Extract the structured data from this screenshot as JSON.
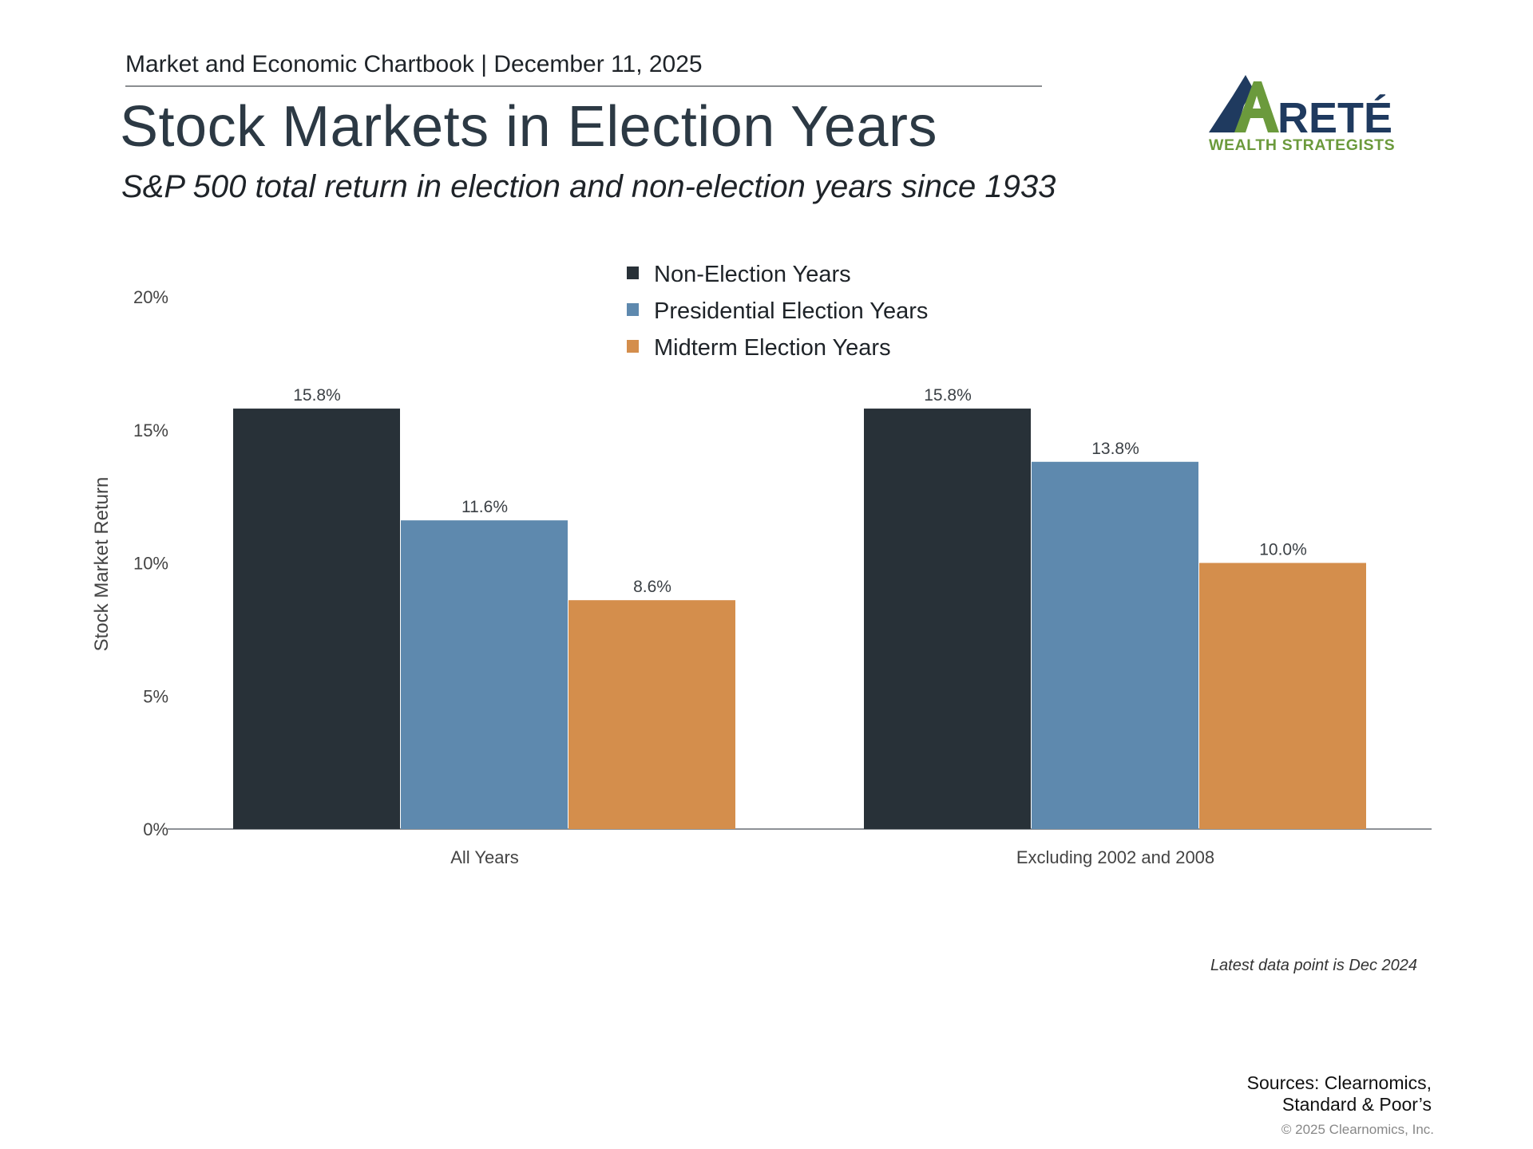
{
  "header": {
    "line": "Market and Economic Chartbook | December 11, 2025",
    "title": "Stock Markets in Election Years",
    "subtitle": "S&P 500 total return in election and non-election years since 1933"
  },
  "logo": {
    "name": "ARETÉ",
    "tagline": "WEALTH STRATEGISTS",
    "colors": {
      "navy": "#1f3a5f",
      "green": "#6b9a3c"
    }
  },
  "chart_data": {
    "type": "bar",
    "categories": [
      "All Years",
      "Excluding 2002 and 2008"
    ],
    "series": [
      {
        "name": "Non-Election Years",
        "values": [
          15.8,
          15.8
        ],
        "labels": [
          "15.8%",
          "15.8%"
        ],
        "color": "#283138"
      },
      {
        "name": "Presidential Election Years",
        "values": [
          11.6,
          13.8
        ],
        "labels": [
          "11.6%",
          "13.8%"
        ],
        "color": "#5e89ae"
      },
      {
        "name": "Midterm Election Years",
        "values": [
          8.6,
          10.0
        ],
        "labels": [
          "8.6%",
          "10.0%"
        ],
        "color": "#d48e4c"
      }
    ],
    "ylabel": "Stock Market Return",
    "ylim": [
      0,
      20
    ],
    "yticks": [
      {
        "value": 0,
        "label": "0%"
      },
      {
        "value": 5,
        "label": "5%"
      },
      {
        "value": 10,
        "label": "10%"
      },
      {
        "value": 15,
        "label": "15%"
      },
      {
        "value": 20,
        "label": "20%"
      }
    ],
    "grid": false,
    "legend_position": "top-center"
  },
  "footnote": "Latest data point is Dec 2024",
  "sources": "Sources: Clearnomics,\nStandard & Poor’s",
  "copyright": "© 2025 Clearnomics, Inc."
}
